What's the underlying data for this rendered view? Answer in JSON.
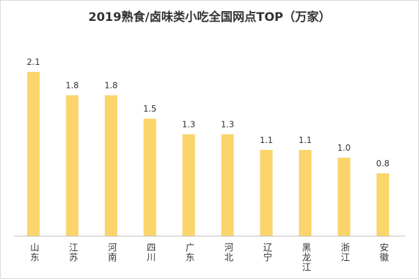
{
  "chart_data": {
    "type": "bar",
    "title": "2019熟食/卤味类小吃全国网点TOP（万家）",
    "categories": [
      "山东",
      "江苏",
      "河南",
      "四川",
      "广东",
      "河北",
      "辽宁",
      "黑龙江",
      "浙江",
      "安徽"
    ],
    "values": [
      2.1,
      1.8,
      1.8,
      1.5,
      1.3,
      1.3,
      1.1,
      1.1,
      1.0,
      0.8
    ],
    "value_labels": [
      "2.1",
      "1.8",
      "1.8",
      "1.5",
      "1.3",
      "1.3",
      "1.1",
      "1.1",
      "1.0",
      "0.8"
    ],
    "color": "#fbd56b"
  }
}
